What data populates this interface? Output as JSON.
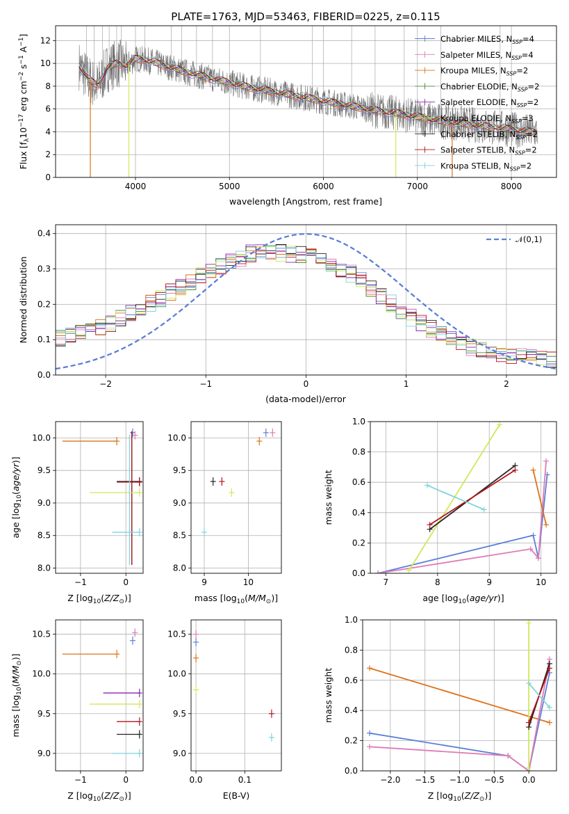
{
  "title": "PLATE=1763, MJD=53463, FIBERID=0225, z=0.115",
  "colors": {
    "Chabrier MILES": "#5b7fd6",
    "Salpeter MILES": "#e07bb4",
    "Kroupa MILES": "#dd7219",
    "Chabrier ELODIE": "#4f8a3a",
    "Salpeter ELODIE": "#8b22b0",
    "Kroupa ELODIE": "#cfe858",
    "Chabrier STELIB": "#222222",
    "Salpeter STELIB": "#b3141b",
    "Kroupa STELIB": "#7fd3dd",
    "data": "#707070",
    "normal": "#5b7fd6"
  },
  "legend_models": [
    {
      "name": "Chabrier MILES",
      "nssp": "4"
    },
    {
      "name": "Salpeter MILES",
      "nssp": "4"
    },
    {
      "name": "Kroupa MILES",
      "nssp": "2"
    },
    {
      "name": "Chabrier ELODIE",
      "nssp": "2"
    },
    {
      "name": "Salpeter ELODIE",
      "nssp": "2"
    },
    {
      "name": "Kroupa ELODIE",
      "nssp": "3"
    },
    {
      "name": "Chabrier STELIB",
      "nssp": "2"
    },
    {
      "name": "Salpeter STELIB",
      "nssp": "2"
    },
    {
      "name": "Kroupa STELIB",
      "nssp": "2"
    }
  ],
  "chart_data": [
    {
      "id": "spectrum",
      "type": "line",
      "xlabel": "wavelength [Angstrom, rest frame]",
      "ylabel": "Flux [f_λ 10^-17 erg cm^-2 s^-1 A^-1]",
      "xlim": [
        3150,
        8480
      ],
      "ylim": [
        0,
        13.3
      ],
      "xticks": [
        4000,
        5000,
        6000,
        7000,
        8000
      ],
      "yticks": [
        0,
        2,
        4,
        6,
        8,
        10,
        12
      ],
      "legend_position": "upper right",
      "continuum_points": {
        "x": [
          3400,
          3500,
          3600,
          3700,
          3800,
          3900,
          4000,
          4100,
          4200,
          4300,
          4400,
          4500,
          4600,
          4700,
          4800,
          4900,
          5000,
          5200,
          5400,
          5600,
          5800,
          6000,
          6200,
          6400,
          6600,
          6800,
          7000,
          7200,
          7400,
          7600,
          7800,
          8000,
          8200
        ],
        "y": [
          9.8,
          8.6,
          8.0,
          9.6,
          10.0,
          9.8,
          10.4,
          10.3,
          10.1,
          9.8,
          9.6,
          9.3,
          9.1,
          8.9,
          8.7,
          8.5,
          8.3,
          7.9,
          7.6,
          7.3,
          7.0,
          6.7,
          6.4,
          6.1,
          5.8,
          5.6,
          5.3,
          5.0,
          4.8,
          4.6,
          4.4,
          4.2,
          4.0
        ]
      },
      "model_dropouts": [
        {
          "model": "Kroupa MILES",
          "x": 3520
        },
        {
          "model": "Kroupa ELODIE",
          "x": 3930
        },
        {
          "model": "Kroupa ELODIE",
          "x": 6770
        },
        {
          "model": "Kroupa MILES",
          "x": 7370
        }
      ]
    },
    {
      "id": "residuals",
      "type": "line",
      "xlabel": "(data-model)/error",
      "ylabel": "Normed distribution",
      "xlim": [
        -2.5,
        2.5
      ],
      "ylim": [
        0,
        0.425
      ],
      "xticks": [
        -2,
        -1,
        0,
        1,
        2
      ],
      "yticks": [
        0.0,
        0.1,
        0.2,
        0.3,
        0.4
      ],
      "legend": "𝒩(0,1)",
      "legend_position": "upper right",
      "series": [
        {
          "name": "𝒩(0,1)",
          "mean": 0,
          "sigma": 1,
          "style": "dashed"
        }
      ],
      "histogram_profile": {
        "x": [
          -2.5,
          -2.0,
          -1.5,
          -1.0,
          -0.5,
          0.0,
          0.5,
          1.0,
          1.5,
          2.0,
          2.5
        ],
        "y": [
          0.1,
          0.14,
          0.21,
          0.29,
          0.35,
          0.34,
          0.28,
          0.17,
          0.09,
          0.055,
          0.04
        ]
      }
    },
    {
      "id": "age_vs_Z",
      "type": "scatter",
      "xlabel": "Z [log10(Z/Z⊙)]",
      "ylabel": "age [log10(age/yr)]",
      "xlim": [
        -1.55,
        0.38
      ],
      "ylim": [
        7.92,
        10.25
      ],
      "xticks": [
        -1,
        0
      ],
      "yticks": [
        8.0,
        8.5,
        9.0,
        9.5,
        10.0
      ],
      "points": [
        {
          "model": "Kroupa MILES",
          "x": -1.4,
          "x2": -0.2,
          "y": 9.95
        },
        {
          "model": "Chabrier MILES",
          "x": 0.15,
          "y": 10.08,
          "yerr": 0.03
        },
        {
          "model": "Salpeter MILES",
          "x": 0.2,
          "y": 10.04,
          "yerr": 0.06
        },
        {
          "model": "Chabrier STELIB",
          "x": -0.2,
          "x2": 0.3,
          "y": 9.33,
          "y1": 8.05,
          "y2": 10.1
        },
        {
          "model": "Salpeter STELIB",
          "x": -0.2,
          "x2": 0.3,
          "y": 9.32,
          "y1": 8.05,
          "y2": 10.08
        },
        {
          "model": "Kroupa ELODIE",
          "x": -0.8,
          "x2": 0.3,
          "y": 9.16
        },
        {
          "model": "Kroupa STELIB",
          "x": -0.3,
          "x2": 0.3,
          "y": 8.55,
          "y1": 8.05,
          "y2": 10.05
        }
      ]
    },
    {
      "id": "age_vs_mass",
      "type": "scatter",
      "xlabel": "mass [log10(M/M⊙)]",
      "ylabel": "",
      "xlim": [
        8.7,
        10.75
      ],
      "ylim": [
        7.92,
        10.25
      ],
      "xticks": [
        9,
        10
      ],
      "yticks": [
        8.0,
        8.5,
        9.0,
        9.5,
        10.0
      ],
      "points": [
        {
          "model": "Chabrier MILES",
          "x": 10.4,
          "y": 10.08
        },
        {
          "model": "Salpeter MILES",
          "x": 10.55,
          "y": 10.08
        },
        {
          "model": "Kroupa MILES",
          "x": 10.25,
          "y": 9.95
        },
        {
          "model": "Chabrier STELIB",
          "x": 9.2,
          "y": 9.33
        },
        {
          "model": "Salpeter STELIB",
          "x": 9.4,
          "y": 9.33
        },
        {
          "model": "Kroupa ELODIE",
          "x": 9.62,
          "y": 9.16
        },
        {
          "model": "Kroupa STELIB",
          "x": 9.0,
          "y": 8.55
        }
      ]
    },
    {
      "id": "weight_vs_age",
      "type": "line",
      "xlabel": "age [log10(age/yr)]",
      "ylabel": "mass weight",
      "xlim": [
        6.7,
        10.3
      ],
      "ylim": [
        0,
        1.0
      ],
      "xticks": [
        7,
        8,
        9,
        10
      ],
      "yticks": [
        0.0,
        0.2,
        0.4,
        0.6,
        0.8,
        1.0
      ],
      "series": [
        {
          "model": "Chabrier MILES",
          "x": [
            6.85,
            9.85,
            9.95,
            10.12
          ],
          "y": [
            0.0,
            0.25,
            0.1,
            0.65
          ]
        },
        {
          "model": "Salpeter MILES",
          "x": [
            6.85,
            9.8,
            9.95,
            10.1
          ],
          "y": [
            0.0,
            0.16,
            0.1,
            0.74
          ]
        },
        {
          "model": "Kroupa MILES",
          "x": [
            9.85,
            10.1
          ],
          "y": [
            0.68,
            0.32
          ]
        },
        {
          "model": "Kroupa ELODIE",
          "x": [
            7.45,
            9.2
          ],
          "y": [
            0.02,
            0.98
          ]
        },
        {
          "model": "Chabrier STELIB",
          "x": [
            7.85,
            9.5
          ],
          "y": [
            0.29,
            0.71
          ]
        },
        {
          "model": "Salpeter STELIB",
          "x": [
            7.85,
            9.5
          ],
          "y": [
            0.32,
            0.68
          ]
        },
        {
          "model": "Kroupa STELIB",
          "x": [
            7.8,
            8.9
          ],
          "y": [
            0.58,
            0.42
          ]
        }
      ]
    },
    {
      "id": "mass_vs_Z",
      "type": "scatter",
      "xlabel": "Z [log10(Z/Z⊙)]",
      "ylabel": "mass [log10(M/M⊙)]",
      "xlim": [
        -1.55,
        0.38
      ],
      "ylim": [
        8.78,
        10.68
      ],
      "xticks": [
        -1,
        0
      ],
      "yticks": [
        9.0,
        9.5,
        10.0,
        10.5
      ],
      "points": [
        {
          "model": "Kroupa MILES",
          "x": -1.4,
          "x2": -0.2,
          "y": 10.25
        },
        {
          "model": "Chabrier MILES",
          "x": 0.15,
          "y": 10.42
        },
        {
          "model": "Salpeter MILES",
          "x": 0.2,
          "y": 10.52
        },
        {
          "model": "Salpeter ELODIE",
          "x": -0.5,
          "x2": 0.3,
          "y": 9.76
        },
        {
          "model": "Kroupa ELODIE",
          "x": -0.8,
          "x2": 0.3,
          "y": 9.62
        },
        {
          "model": "Salpeter STELIB",
          "x": -0.2,
          "x2": 0.3,
          "y": 9.4
        },
        {
          "model": "Chabrier STELIB",
          "x": -0.2,
          "x2": 0.3,
          "y": 9.24
        },
        {
          "model": "Kroupa STELIB",
          "x": -0.3,
          "x2": 0.3,
          "y": 9.0
        }
      ]
    },
    {
      "id": "mass_vs_ebv",
      "type": "scatter",
      "xlabel": "E(B-V)",
      "ylabel": "",
      "xlim": [
        -0.01,
        0.175
      ],
      "ylim": [
        8.78,
        10.68
      ],
      "xticks": [
        0.0,
        0.1
      ],
      "yticks": [
        9.0,
        9.5,
        10.0,
        10.5
      ],
      "points": [
        {
          "model": "Salpeter MILES",
          "x": 0.0,
          "y": 10.5
        },
        {
          "model": "Chabrier MILES",
          "x": 0.0,
          "y": 10.4
        },
        {
          "model": "Kroupa MILES",
          "x": 0.0,
          "y": 10.2
        },
        {
          "model": "Kroupa ELODIE",
          "x": 0.0,
          "y": 9.8
        },
        {
          "model": "Salpeter STELIB",
          "x": 0.155,
          "y": 9.5
        },
        {
          "model": "Kroupa STELIB",
          "x": 0.155,
          "y": 9.2
        }
      ]
    },
    {
      "id": "weight_vs_Z",
      "type": "line",
      "xlabel": "Z [log10(Z/Z⊙)]",
      "ylabel": "mass weight",
      "xlim": [
        -2.4,
        0.4
      ],
      "ylim": [
        0,
        1.0
      ],
      "xticks": [
        -2.0,
        -1.5,
        -1.0,
        -0.5,
        0.0
      ],
      "yticks": [
        0.0,
        0.2,
        0.4,
        0.6,
        0.8,
        1.0
      ],
      "series": [
        {
          "model": "Kroupa MILES",
          "x": [
            -2.3,
            0.3
          ],
          "y": [
            0.68,
            0.32
          ]
        },
        {
          "model": "Chabrier MILES",
          "x": [
            -2.3,
            -0.3,
            0.0,
            0.3
          ],
          "y": [
            0.25,
            0.1,
            0.0,
            0.65
          ]
        },
        {
          "model": "Salpeter MILES",
          "x": [
            -2.3,
            -0.3,
            0.0,
            0.3
          ],
          "y": [
            0.16,
            0.1,
            0.0,
            0.74
          ]
        },
        {
          "model": "Kroupa ELODIE",
          "x": [
            0.0,
            0.0
          ],
          "y": [
            0.02,
            0.98
          ]
        },
        {
          "model": "Chabrier STELIB",
          "x": [
            0.0,
            0.3
          ],
          "y": [
            0.29,
            0.71
          ]
        },
        {
          "model": "Salpeter STELIB",
          "x": [
            0.0,
            0.3
          ],
          "y": [
            0.32,
            0.68
          ]
        },
        {
          "model": "Kroupa STELIB",
          "x": [
            0.0,
            0.3
          ],
          "y": [
            0.58,
            0.42
          ]
        }
      ]
    }
  ]
}
